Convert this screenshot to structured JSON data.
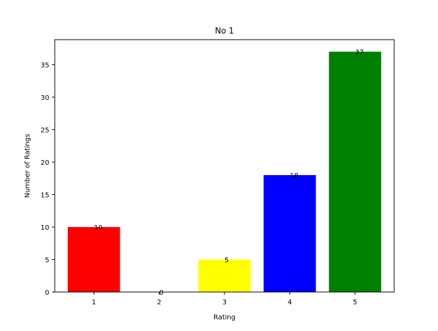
{
  "chart_data": {
    "type": "bar",
    "title": "No 1",
    "xlabel": "Rating",
    "ylabel": "Number of Ratings",
    "categories": [
      "1",
      "2",
      "3",
      "4",
      "5"
    ],
    "values": [
      10,
      0,
      5,
      18,
      37
    ],
    "data_labels": [
      "10",
      "0",
      "5",
      "18",
      "37"
    ],
    "bar_colors": [
      "#ff0000",
      "#ff0000",
      "#ffff00",
      "#0000ff",
      "#008000"
    ],
    "ylim": [
      0,
      38.85
    ],
    "yticks": [
      0,
      5,
      10,
      15,
      20,
      25,
      30,
      35
    ],
    "ytick_labels": [
      "0",
      "5",
      "10",
      "15",
      "20",
      "25",
      "30",
      "35"
    ],
    "grid": false,
    "legend": false
  }
}
